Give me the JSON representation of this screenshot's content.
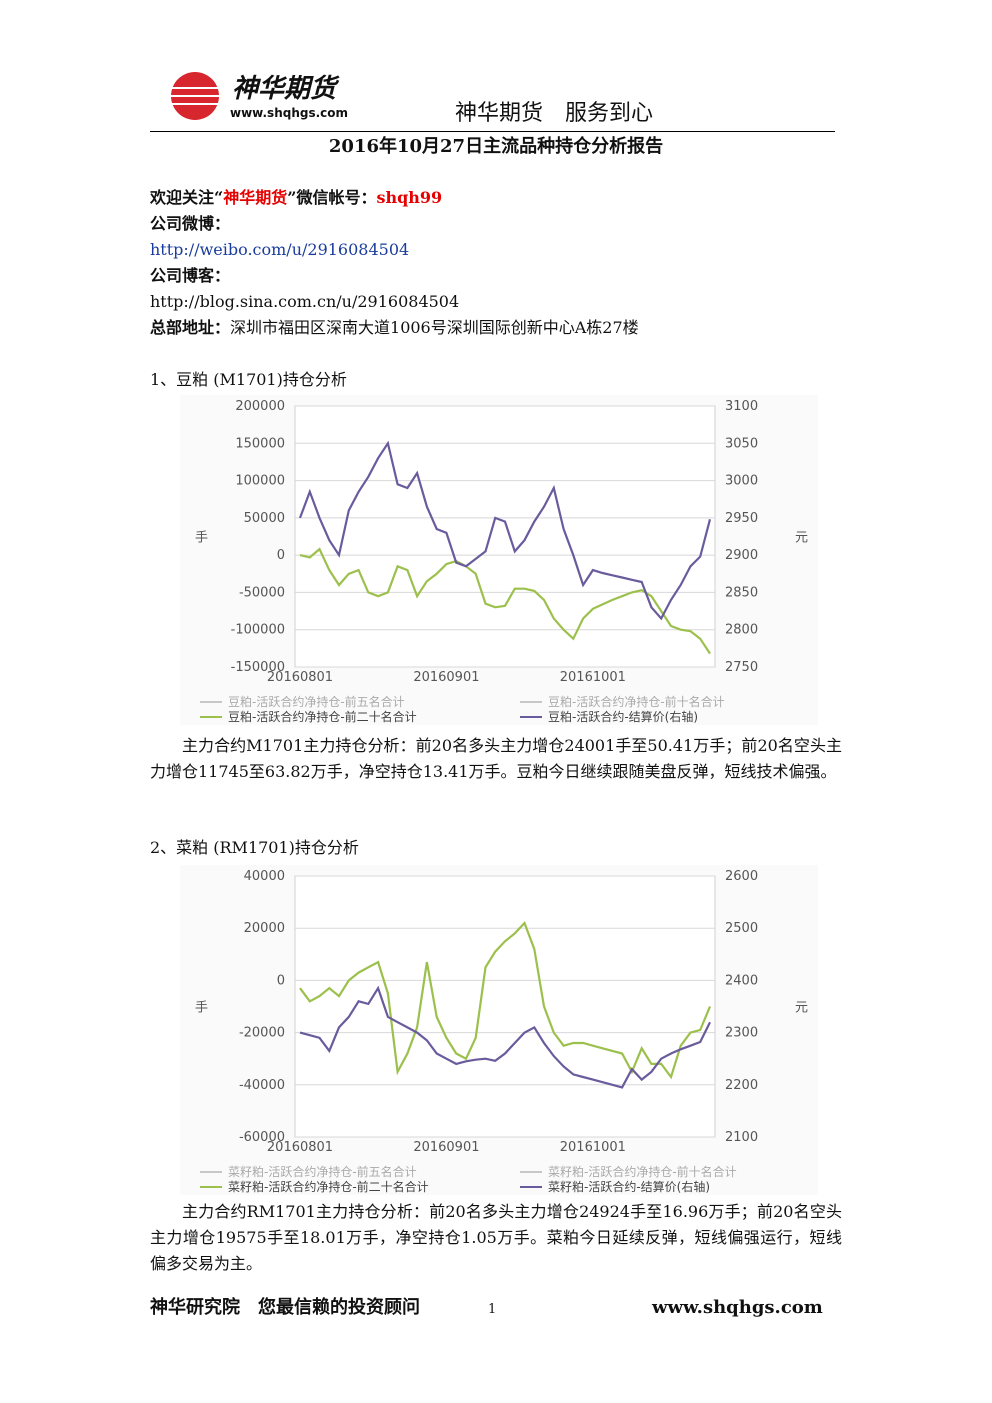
{
  "header": {
    "brand": "神华期货",
    "site": "www.shqhgs.com",
    "slogan": "神华期货　服务到心"
  },
  "title": "2016年10月27日主流品种持仓分析报告",
  "contact": {
    "wechat": [
      "欢迎关注“",
      "神华期货",
      "”微信帐号：",
      "shqh99"
    ],
    "weibo_label": "公司微博：",
    "weibo_url": "http://weibo.com/u/2916084504",
    "blog_label": "公司博客：",
    "blog_url": "http://blog.sina.com.cn/u/2916084504",
    "address_label": "总部地址：",
    "address": "深圳市福田区深南大道1006号深圳国际创新中心A栋27楼"
  },
  "sections": [
    {
      "heading": "1、豆粕 (M1701)持仓分析",
      "paragraph": "主力合约M1701主力持仓分析：前20名多头主力增仓24001手至50.41万手；前20名空头主力增仓11745至63.82万手，净空持仓13.41万手。豆粕今日继续跟随美盘反弹，短线技术偏强。"
    },
    {
      "heading": "2、菜粕 (RM1701)持仓分析",
      "paragraph": "主力合约RM1701主力持仓分析：前20名多头主力增仓24924手至16.96万手；前20名空头主力增仓19575手至18.01万手，净空持仓1.05万手。菜粕今日延续反弹，短线偏强运行，短线偏多交易为主。"
    }
  ],
  "footer": {
    "left": "神华研究院　您最信赖的投资顾问",
    "page": "1",
    "right": "www.shqhgs.com"
  },
  "chart_data": [
    {
      "type": "line",
      "y_label": "手",
      "y2_label": "元",
      "grid": true,
      "legend": "bottom",
      "categories": [
        "20160801",
        null,
        null,
        null,
        null,
        null,
        null,
        null,
        null,
        null,
        null,
        null,
        null,
        null,
        null,
        "20160901",
        null,
        null,
        null,
        null,
        null,
        null,
        null,
        null,
        null,
        null,
        null,
        null,
        null,
        null,
        "20161001",
        null,
        null,
        null,
        null,
        null,
        null,
        null,
        null,
        null,
        null,
        null,
        null
      ],
      "ylim": [
        -150000,
        200000
      ],
      "yticks": [
        -150000,
        -100000,
        -50000,
        0,
        50000,
        100000,
        150000,
        200000
      ],
      "y2lim": [
        2750,
        3100
      ],
      "y2ticks": [
        2750,
        2800,
        2850,
        2900,
        2950,
        3000,
        3050,
        3100
      ],
      "series": [
        {
          "name": "豆粕-活跃合约净持仓-前五名合计",
          "color": "#c8c8c8",
          "values": [
            null,
            null,
            null,
            null,
            null,
            null,
            null,
            null,
            null,
            null,
            null,
            null,
            null,
            null,
            null,
            null,
            null,
            null,
            null,
            null,
            null,
            null,
            null,
            null,
            null,
            null,
            null,
            null,
            null,
            null,
            null,
            null,
            null,
            null,
            null,
            null,
            null,
            null,
            null,
            null,
            null,
            null,
            null
          ]
        },
        {
          "name": "豆粕-活跃合约净持仓-前十名合计",
          "color": "#c8c8c8",
          "values": [
            null,
            null,
            null,
            null,
            null,
            null,
            null,
            null,
            null,
            null,
            null,
            null,
            null,
            null,
            null,
            null,
            null,
            null,
            null,
            null,
            null,
            null,
            null,
            null,
            null,
            null,
            null,
            null,
            null,
            null,
            null,
            null,
            null,
            null,
            null,
            null,
            null,
            null,
            null,
            null,
            null,
            null,
            null
          ]
        },
        {
          "name": "豆粕-活跃合约净持仓-前二十名合计",
          "color": "#9cc04c",
          "values": [
            0,
            -3000,
            8000,
            -20000,
            -40000,
            -25000,
            -20000,
            -50000,
            -55000,
            -50000,
            -15000,
            -20000,
            -55000,
            -35000,
            -25000,
            -12000,
            -8000,
            -15000,
            -25000,
            -65000,
            -70000,
            -68000,
            -45000,
            -45000,
            -48000,
            -60000,
            -85000,
            -100000,
            -112000,
            -85000,
            -72000,
            -66000,
            -60000,
            -55000,
            -50000,
            -47000,
            -55000,
            -75000,
            -95000,
            -100000,
            -102000,
            -112000,
            -132000
          ]
        },
        {
          "name": "豆粕-活跃合约-结算价(右轴)",
          "color": "#6a5b9c",
          "axis": "y2",
          "values": [
            2950,
            2985,
            2950,
            2920,
            2900,
            2960,
            2985,
            3005,
            3030,
            3050,
            2995,
            2990,
            3010,
            2965,
            2935,
            2930,
            2890,
            2885,
            2895,
            2905,
            2950,
            2945,
            2905,
            2920,
            2945,
            2965,
            2990,
            2935,
            2900,
            2860,
            2880,
            2876,
            2873,
            2870,
            2867,
            2864,
            2830,
            2815,
            2840,
            2860,
            2885,
            2898,
            2948
          ]
        }
      ]
    },
    {
      "type": "line",
      "y_label": "手",
      "y2_label": "元",
      "grid": true,
      "legend": "bottom",
      "categories": [
        "20160801",
        null,
        null,
        null,
        null,
        null,
        null,
        null,
        null,
        null,
        null,
        null,
        null,
        null,
        null,
        "20160901",
        null,
        null,
        null,
        null,
        null,
        null,
        null,
        null,
        null,
        null,
        null,
        null,
        null,
        null,
        "20161001",
        null,
        null,
        null,
        null,
        null,
        null,
        null,
        null,
        null,
        null,
        null,
        null
      ],
      "ylim": [
        -60000,
        40000
      ],
      "yticks": [
        -60000,
        -40000,
        -20000,
        0,
        20000,
        40000
      ],
      "y2lim": [
        2100,
        2600
      ],
      "y2ticks": [
        2100,
        2200,
        2300,
        2400,
        2500,
        2600
      ],
      "series": [
        {
          "name": "菜籽粕-活跃合约净持仓-前五名合计",
          "color": "#c8c8c8",
          "values": [
            null,
            null,
            null,
            null,
            null,
            null,
            null,
            null,
            null,
            null,
            null,
            null,
            null,
            null,
            null,
            null,
            null,
            null,
            null,
            null,
            null,
            null,
            null,
            null,
            null,
            null,
            null,
            null,
            null,
            null,
            null,
            null,
            null,
            null,
            null,
            null,
            null,
            null,
            null,
            null,
            null,
            null,
            null
          ]
        },
        {
          "name": "菜籽粕-活跃合约净持仓-前十名合计",
          "color": "#c8c8c8",
          "values": [
            null,
            null,
            null,
            null,
            null,
            null,
            null,
            null,
            null,
            null,
            null,
            null,
            null,
            null,
            null,
            null,
            null,
            null,
            null,
            null,
            null,
            null,
            null,
            null,
            null,
            null,
            null,
            null,
            null,
            null,
            null,
            null,
            null,
            null,
            null,
            null,
            null,
            null,
            null,
            null,
            null,
            null,
            null
          ]
        },
        {
          "name": "菜籽粕-活跃合约净持仓-前二十名合计",
          "color": "#9cc04c",
          "values": [
            -3000,
            -8000,
            -6000,
            -3000,
            -6000,
            0,
            3000,
            5000,
            7000,
            -5000,
            -35000,
            -28000,
            -18000,
            7000,
            -14000,
            -22000,
            -28000,
            -30000,
            -22000,
            5000,
            11000,
            15000,
            18000,
            22000,
            12000,
            -10000,
            -20000,
            -25000,
            -24000,
            -24000,
            -25000,
            -26000,
            -27000,
            -28000,
            -35000,
            -26000,
            -32000,
            -32000,
            -37000,
            -25000,
            -20000,
            -19000,
            -10000
          ]
        },
        {
          "name": "菜籽粕-活跃合约-结算价(右轴)",
          "color": "#6a5b9c",
          "axis": "y2",
          "values": [
            2300,
            2295,
            2290,
            2265,
            2310,
            2330,
            2360,
            2355,
            2385,
            2330,
            2320,
            2310,
            2300,
            2285,
            2260,
            2250,
            2240,
            2245,
            2248,
            2250,
            2246,
            2260,
            2280,
            2300,
            2310,
            2280,
            2255,
            2235,
            2220,
            2215,
            2210,
            2205,
            2200,
            2195,
            2230,
            2210,
            2225,
            2250,
            2260,
            2268,
            2275,
            2282,
            2320
          ]
        }
      ]
    }
  ]
}
